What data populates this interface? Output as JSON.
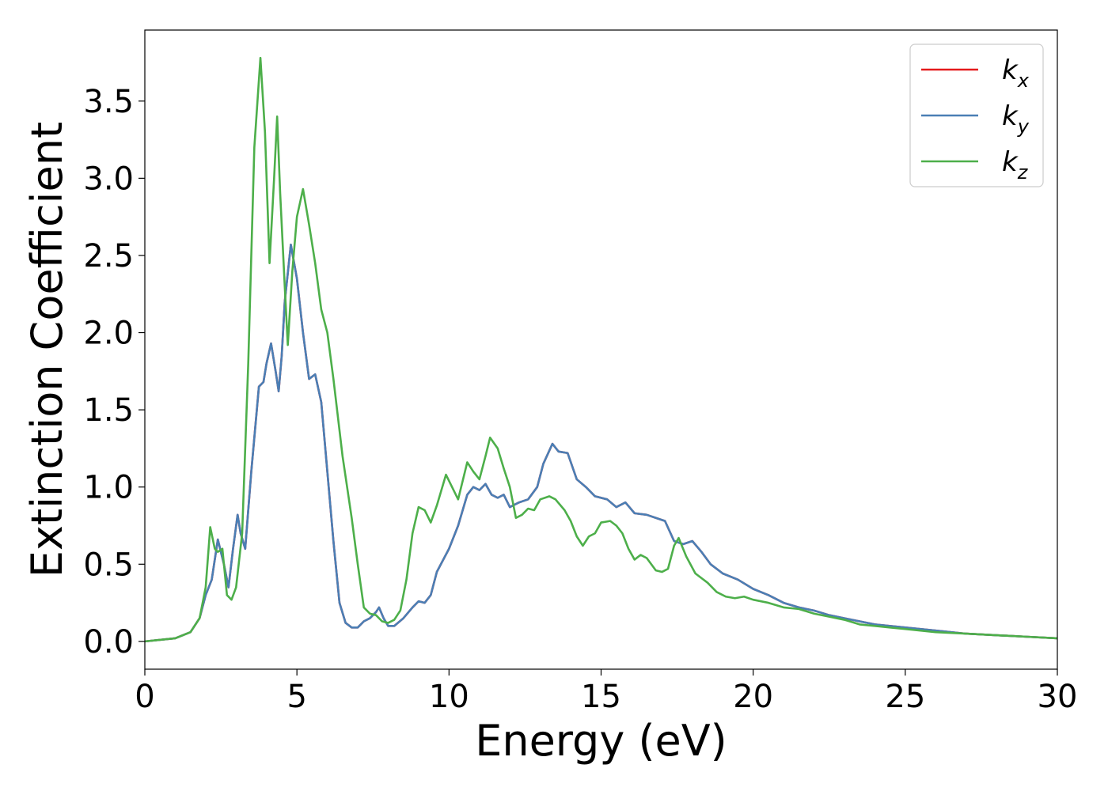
{
  "chart_data": {
    "type": "line",
    "title": "",
    "xlabel": "Energy (eV)",
    "ylabel": "Extinction Coefficient",
    "xlim": [
      0,
      30
    ],
    "ylim": [
      -0.18,
      3.96
    ],
    "xticks": [
      0,
      5,
      10,
      15,
      20,
      25,
      30
    ],
    "yticks": [
      0.0,
      0.5,
      1.0,
      1.5,
      2.0,
      2.5,
      3.0,
      3.5
    ],
    "grid": false,
    "legend": {
      "position": "top-right"
    },
    "series": [
      {
        "name": "k",
        "subscript": "x",
        "color": "#e41a1c",
        "points": [
          [
            0,
            0.0
          ],
          [
            1,
            0.02
          ],
          [
            1.5,
            0.06
          ],
          [
            1.8,
            0.15
          ],
          [
            2.0,
            0.3
          ],
          [
            2.2,
            0.4
          ],
          [
            2.4,
            0.66
          ],
          [
            2.6,
            0.5
          ],
          [
            2.75,
            0.35
          ],
          [
            2.9,
            0.6
          ],
          [
            3.05,
            0.82
          ],
          [
            3.15,
            0.7
          ],
          [
            3.3,
            0.6
          ],
          [
            3.5,
            1.1
          ],
          [
            3.75,
            1.65
          ],
          [
            3.9,
            1.68
          ],
          [
            4.0,
            1.8
          ],
          [
            4.15,
            1.93
          ],
          [
            4.3,
            1.75
          ],
          [
            4.4,
            1.62
          ],
          [
            4.5,
            1.85
          ],
          [
            4.6,
            2.2
          ],
          [
            4.8,
            2.57
          ],
          [
            5.0,
            2.35
          ],
          [
            5.2,
            2.0
          ],
          [
            5.4,
            1.7
          ],
          [
            5.6,
            1.73
          ],
          [
            5.8,
            1.55
          ],
          [
            6.0,
            1.1
          ],
          [
            6.2,
            0.65
          ],
          [
            6.4,
            0.25
          ],
          [
            6.6,
            0.12
          ],
          [
            6.8,
            0.09
          ],
          [
            7.0,
            0.09
          ],
          [
            7.2,
            0.13
          ],
          [
            7.4,
            0.15
          ],
          [
            7.6,
            0.19
          ],
          [
            7.7,
            0.22
          ],
          [
            7.85,
            0.15
          ],
          [
            8.0,
            0.1
          ],
          [
            8.2,
            0.1
          ],
          [
            8.5,
            0.15
          ],
          [
            8.8,
            0.22
          ],
          [
            9.0,
            0.26
          ],
          [
            9.2,
            0.25
          ],
          [
            9.4,
            0.3
          ],
          [
            9.6,
            0.45
          ],
          [
            10.0,
            0.6
          ],
          [
            10.3,
            0.75
          ],
          [
            10.6,
            0.95
          ],
          [
            10.8,
            1.0
          ],
          [
            11.0,
            0.98
          ],
          [
            11.2,
            1.02
          ],
          [
            11.4,
            0.95
          ],
          [
            11.6,
            0.93
          ],
          [
            11.8,
            0.95
          ],
          [
            12.0,
            0.87
          ],
          [
            12.3,
            0.9
          ],
          [
            12.6,
            0.92
          ],
          [
            12.9,
            1.0
          ],
          [
            13.1,
            1.15
          ],
          [
            13.4,
            1.28
          ],
          [
            13.6,
            1.23
          ],
          [
            13.9,
            1.22
          ],
          [
            14.2,
            1.05
          ],
          [
            14.5,
            1.0
          ],
          [
            14.8,
            0.94
          ],
          [
            15.2,
            0.92
          ],
          [
            15.5,
            0.87
          ],
          [
            15.8,
            0.9
          ],
          [
            16.1,
            0.83
          ],
          [
            16.5,
            0.82
          ],
          [
            16.8,
            0.8
          ],
          [
            17.1,
            0.78
          ],
          [
            17.4,
            0.65
          ],
          [
            17.7,
            0.63
          ],
          [
            18.0,
            0.65
          ],
          [
            18.3,
            0.58
          ],
          [
            18.6,
            0.5
          ],
          [
            19.0,
            0.44
          ],
          [
            19.5,
            0.4
          ],
          [
            20.0,
            0.34
          ],
          [
            20.5,
            0.3
          ],
          [
            21.0,
            0.25
          ],
          [
            21.5,
            0.22
          ],
          [
            22.0,
            0.2
          ],
          [
            22.5,
            0.17
          ],
          [
            23.0,
            0.15
          ],
          [
            23.5,
            0.13
          ],
          [
            24.0,
            0.11
          ],
          [
            25.0,
            0.09
          ],
          [
            26.0,
            0.07
          ],
          [
            27.0,
            0.05
          ],
          [
            28.0,
            0.04
          ],
          [
            29.0,
            0.03
          ],
          [
            30.0,
            0.02
          ]
        ]
      },
      {
        "name": "k",
        "subscript": "y",
        "color": "#4a7fb5",
        "points": [
          [
            0,
            0.0
          ],
          [
            1,
            0.02
          ],
          [
            1.5,
            0.06
          ],
          [
            1.8,
            0.15
          ],
          [
            2.0,
            0.3
          ],
          [
            2.2,
            0.4
          ],
          [
            2.4,
            0.66
          ],
          [
            2.6,
            0.5
          ],
          [
            2.75,
            0.35
          ],
          [
            2.9,
            0.6
          ],
          [
            3.05,
            0.82
          ],
          [
            3.15,
            0.7
          ],
          [
            3.3,
            0.6
          ],
          [
            3.5,
            1.1
          ],
          [
            3.75,
            1.65
          ],
          [
            3.9,
            1.68
          ],
          [
            4.0,
            1.8
          ],
          [
            4.15,
            1.93
          ],
          [
            4.3,
            1.75
          ],
          [
            4.4,
            1.62
          ],
          [
            4.5,
            1.85
          ],
          [
            4.6,
            2.2
          ],
          [
            4.8,
            2.57
          ],
          [
            5.0,
            2.35
          ],
          [
            5.2,
            2.0
          ],
          [
            5.4,
            1.7
          ],
          [
            5.6,
            1.73
          ],
          [
            5.8,
            1.55
          ],
          [
            6.0,
            1.1
          ],
          [
            6.2,
            0.65
          ],
          [
            6.4,
            0.25
          ],
          [
            6.6,
            0.12
          ],
          [
            6.8,
            0.09
          ],
          [
            7.0,
            0.09
          ],
          [
            7.2,
            0.13
          ],
          [
            7.4,
            0.15
          ],
          [
            7.6,
            0.19
          ],
          [
            7.7,
            0.22
          ],
          [
            7.85,
            0.15
          ],
          [
            8.0,
            0.1
          ],
          [
            8.2,
            0.1
          ],
          [
            8.5,
            0.15
          ],
          [
            8.8,
            0.22
          ],
          [
            9.0,
            0.26
          ],
          [
            9.2,
            0.25
          ],
          [
            9.4,
            0.3
          ],
          [
            9.6,
            0.45
          ],
          [
            10.0,
            0.6
          ],
          [
            10.3,
            0.75
          ],
          [
            10.6,
            0.95
          ],
          [
            10.8,
            1.0
          ],
          [
            11.0,
            0.98
          ],
          [
            11.2,
            1.02
          ],
          [
            11.4,
            0.95
          ],
          [
            11.6,
            0.93
          ],
          [
            11.8,
            0.95
          ],
          [
            12.0,
            0.87
          ],
          [
            12.3,
            0.9
          ],
          [
            12.6,
            0.92
          ],
          [
            12.9,
            1.0
          ],
          [
            13.1,
            1.15
          ],
          [
            13.4,
            1.28
          ],
          [
            13.6,
            1.23
          ],
          [
            13.9,
            1.22
          ],
          [
            14.2,
            1.05
          ],
          [
            14.5,
            1.0
          ],
          [
            14.8,
            0.94
          ],
          [
            15.2,
            0.92
          ],
          [
            15.5,
            0.87
          ],
          [
            15.8,
            0.9
          ],
          [
            16.1,
            0.83
          ],
          [
            16.5,
            0.82
          ],
          [
            16.8,
            0.8
          ],
          [
            17.1,
            0.78
          ],
          [
            17.4,
            0.65
          ],
          [
            17.7,
            0.63
          ],
          [
            18.0,
            0.65
          ],
          [
            18.3,
            0.58
          ],
          [
            18.6,
            0.5
          ],
          [
            19.0,
            0.44
          ],
          [
            19.5,
            0.4
          ],
          [
            20.0,
            0.34
          ],
          [
            20.5,
            0.3
          ],
          [
            21.0,
            0.25
          ],
          [
            21.5,
            0.22
          ],
          [
            22.0,
            0.2
          ],
          [
            22.5,
            0.17
          ],
          [
            23.0,
            0.15
          ],
          [
            23.5,
            0.13
          ],
          [
            24.0,
            0.11
          ],
          [
            25.0,
            0.09
          ],
          [
            26.0,
            0.07
          ],
          [
            27.0,
            0.05
          ],
          [
            28.0,
            0.04
          ],
          [
            29.0,
            0.03
          ],
          [
            30.0,
            0.02
          ]
        ]
      },
      {
        "name": "k",
        "subscript": "z",
        "color": "#4daf4a",
        "points": [
          [
            0,
            0.0
          ],
          [
            1,
            0.02
          ],
          [
            1.5,
            0.06
          ],
          [
            1.8,
            0.15
          ],
          [
            2.0,
            0.35
          ],
          [
            2.15,
            0.74
          ],
          [
            2.3,
            0.6
          ],
          [
            2.4,
            0.58
          ],
          [
            2.55,
            0.6
          ],
          [
            2.7,
            0.3
          ],
          [
            2.85,
            0.27
          ],
          [
            3.0,
            0.35
          ],
          [
            3.2,
            0.7
          ],
          [
            3.4,
            1.8
          ],
          [
            3.6,
            3.2
          ],
          [
            3.8,
            3.78
          ],
          [
            3.95,
            3.3
          ],
          [
            4.1,
            2.45
          ],
          [
            4.25,
            3.0
          ],
          [
            4.35,
            3.4
          ],
          [
            4.45,
            2.9
          ],
          [
            4.6,
            2.3
          ],
          [
            4.7,
            1.92
          ],
          [
            4.85,
            2.4
          ],
          [
            5.0,
            2.75
          ],
          [
            5.2,
            2.93
          ],
          [
            5.4,
            2.7
          ],
          [
            5.6,
            2.45
          ],
          [
            5.8,
            2.15
          ],
          [
            6.0,
            2.0
          ],
          [
            6.2,
            1.7
          ],
          [
            6.5,
            1.2
          ],
          [
            6.8,
            0.8
          ],
          [
            7.0,
            0.5
          ],
          [
            7.2,
            0.22
          ],
          [
            7.4,
            0.18
          ],
          [
            7.6,
            0.17
          ],
          [
            7.8,
            0.13
          ],
          [
            8.0,
            0.12
          ],
          [
            8.2,
            0.14
          ],
          [
            8.4,
            0.2
          ],
          [
            8.6,
            0.4
          ],
          [
            8.8,
            0.7
          ],
          [
            9.0,
            0.87
          ],
          [
            9.2,
            0.85
          ],
          [
            9.4,
            0.77
          ],
          [
            9.6,
            0.88
          ],
          [
            9.9,
            1.08
          ],
          [
            10.1,
            1.0
          ],
          [
            10.3,
            0.92
          ],
          [
            10.6,
            1.16
          ],
          [
            10.8,
            1.1
          ],
          [
            11.0,
            1.05
          ],
          [
            11.2,
            1.2
          ],
          [
            11.35,
            1.32
          ],
          [
            11.6,
            1.25
          ],
          [
            11.8,
            1.12
          ],
          [
            12.0,
            1.0
          ],
          [
            12.2,
            0.8
          ],
          [
            12.4,
            0.82
          ],
          [
            12.6,
            0.86
          ],
          [
            12.8,
            0.85
          ],
          [
            13.0,
            0.92
          ],
          [
            13.3,
            0.94
          ],
          [
            13.5,
            0.92
          ],
          [
            13.8,
            0.85
          ],
          [
            14.0,
            0.78
          ],
          [
            14.2,
            0.68
          ],
          [
            14.4,
            0.62
          ],
          [
            14.6,
            0.68
          ],
          [
            14.8,
            0.7
          ],
          [
            15.0,
            0.77
          ],
          [
            15.3,
            0.78
          ],
          [
            15.5,
            0.75
          ],
          [
            15.7,
            0.7
          ],
          [
            15.9,
            0.6
          ],
          [
            16.1,
            0.53
          ],
          [
            16.3,
            0.56
          ],
          [
            16.5,
            0.54
          ],
          [
            16.8,
            0.46
          ],
          [
            17.0,
            0.45
          ],
          [
            17.2,
            0.47
          ],
          [
            17.4,
            0.62
          ],
          [
            17.55,
            0.67
          ],
          [
            17.8,
            0.55
          ],
          [
            18.1,
            0.44
          ],
          [
            18.5,
            0.38
          ],
          [
            18.8,
            0.32
          ],
          [
            19.1,
            0.29
          ],
          [
            19.4,
            0.28
          ],
          [
            19.7,
            0.29
          ],
          [
            20.0,
            0.27
          ],
          [
            20.5,
            0.25
          ],
          [
            21.0,
            0.22
          ],
          [
            21.5,
            0.21
          ],
          [
            22.0,
            0.18
          ],
          [
            22.5,
            0.16
          ],
          [
            23.0,
            0.14
          ],
          [
            23.5,
            0.11
          ],
          [
            24.0,
            0.1
          ],
          [
            24.5,
            0.09
          ],
          [
            25.0,
            0.08
          ],
          [
            26.0,
            0.06
          ],
          [
            27.0,
            0.05
          ],
          [
            28.0,
            0.04
          ],
          [
            29.0,
            0.03
          ],
          [
            30.0,
            0.02
          ]
        ]
      }
    ]
  }
}
